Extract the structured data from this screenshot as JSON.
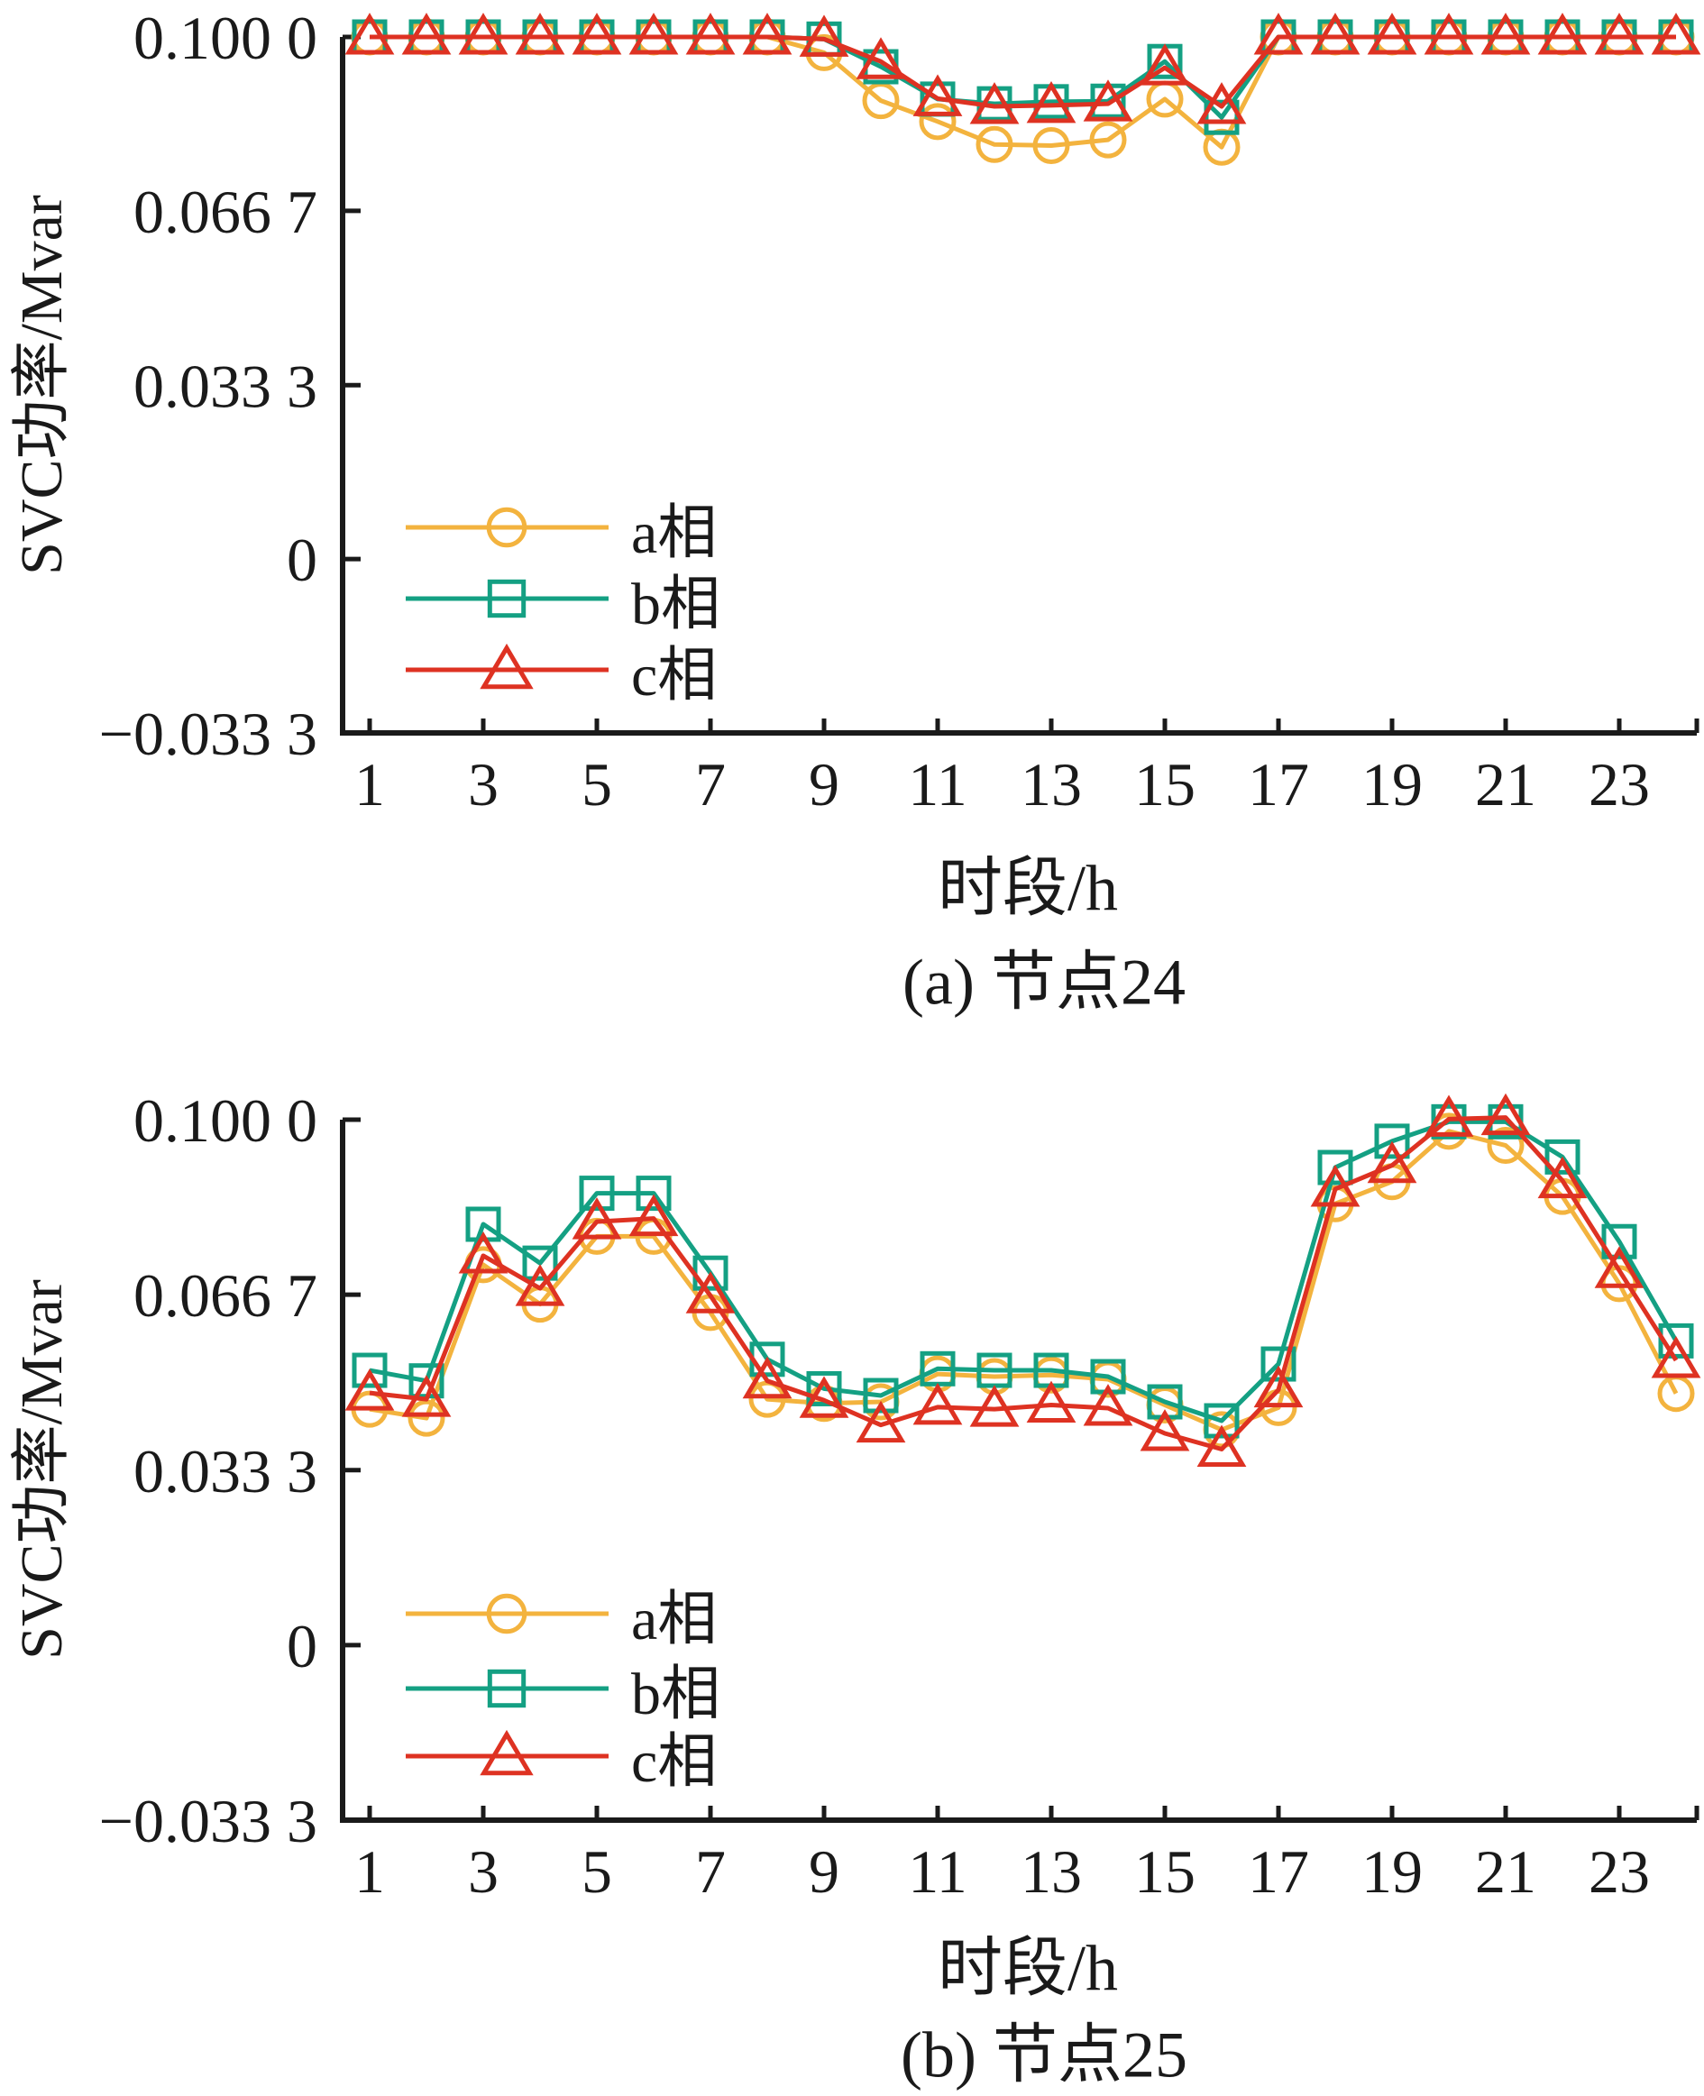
{
  "figure": {
    "background": "#ffffff",
    "axis_color": "#1a1a1a",
    "series_colors": {
      "a_phase": "#F3B33E",
      "b_phase": "#14A083",
      "c_phase": "#DE3222"
    }
  },
  "chart_data": [
    {
      "id": "a",
      "type": "line",
      "title": "(a) 节点24",
      "xlabel": "时段/h",
      "ylabel": "SVC功率/Mvar",
      "grid": false,
      "legend_position": "inside-lower-left",
      "xlim": [
        0.5,
        24.5
      ],
      "ylim": [
        -0.0333,
        0.1
      ],
      "x": [
        1,
        2,
        3,
        4,
        5,
        6,
        7,
        8,
        9,
        10,
        11,
        12,
        13,
        14,
        15,
        16,
        17,
        18,
        19,
        20,
        21,
        22,
        23,
        24
      ],
      "xticks": {
        "values": [
          1,
          3,
          5,
          7,
          9,
          11,
          13,
          15,
          17,
          19,
          21,
          23
        ],
        "labels": [
          "1",
          "3",
          "5",
          "7",
          "9",
          "11",
          "13",
          "15",
          "17",
          "19",
          "21",
          "23"
        ]
      },
      "yticks": {
        "values": [
          0.1,
          0.0667,
          0.0333,
          0,
          -0.0333
        ],
        "labels": [
          "0.100 0",
          "0.066 7",
          "0.033 3",
          "0",
          "−0.033 3"
        ]
      },
      "series": [
        {
          "name": "a相",
          "marker": "circle",
          "color": "#F3B33E",
          "values": [
            0.1,
            0.1,
            0.1,
            0.1,
            0.1,
            0.1,
            0.1,
            0.1,
            0.097,
            0.0878,
            0.0838,
            0.0794,
            0.0792,
            0.0803,
            0.0881,
            0.0789,
            0.1,
            0.1,
            0.1,
            0.1,
            0.1,
            0.1,
            0.1,
            0.1
          ]
        },
        {
          "name": "b相",
          "marker": "square",
          "color": "#14A083",
          "values": [
            0.1,
            0.1,
            0.1,
            0.1,
            0.1,
            0.1,
            0.1,
            0.1,
            0.0996,
            0.0943,
            0.0881,
            0.0872,
            0.0876,
            0.0877,
            0.0953,
            0.0846,
            0.1,
            0.1,
            0.1,
            0.1,
            0.1,
            0.1,
            0.1,
            0.1
          ]
        },
        {
          "name": "c相",
          "marker": "triangle",
          "color": "#DE3222",
          "values": [
            0.1,
            0.1,
            0.1,
            0.1,
            0.1,
            0.1,
            0.1,
            0.1,
            0.0996,
            0.0953,
            0.0882,
            0.0867,
            0.0869,
            0.0872,
            0.0941,
            0.0867,
            0.1,
            0.1,
            0.1,
            0.1,
            0.1,
            0.1,
            0.1,
            0.1
          ]
        }
      ]
    },
    {
      "id": "b",
      "type": "line",
      "title": "(b) 节点25",
      "xlabel": "时段/h",
      "ylabel": "SVC功率/Mvar",
      "grid": false,
      "legend_position": "inside-lower-left",
      "xlim": [
        0.5,
        24.5
      ],
      "ylim": [
        -0.0333,
        0.1
      ],
      "x": [
        1,
        2,
        3,
        4,
        5,
        6,
        7,
        8,
        9,
        10,
        11,
        12,
        13,
        14,
        15,
        16,
        17,
        18,
        19,
        20,
        21,
        22,
        23,
        24
      ],
      "xticks": {
        "values": [
          1,
          3,
          5,
          7,
          9,
          11,
          13,
          15,
          17,
          19,
          21,
          23
        ],
        "labels": [
          "1",
          "3",
          "5",
          "7",
          "9",
          "11",
          "13",
          "15",
          "17",
          "19",
          "21",
          "23"
        ]
      },
      "yticks": {
        "values": [
          0.1,
          0.0667,
          0.0333,
          0,
          -0.0333
        ],
        "labels": [
          "0.100 0",
          "0.066 7",
          "0.033 3",
          "0",
          "−0.033 3"
        ]
      },
      "series": [
        {
          "name": "a相",
          "marker": "circle",
          "color": "#F3B33E",
          "values": [
            0.0449,
            0.0432,
            0.0724,
            0.0649,
            0.0778,
            0.0778,
            0.0633,
            0.0468,
            0.046,
            0.0463,
            0.0516,
            0.0511,
            0.0514,
            0.0506,
            0.0457,
            0.041,
            0.0452,
            0.084,
            0.0882,
            0.0978,
            0.0951,
            0.0854,
            0.0688,
            0.0479
          ]
        },
        {
          "name": "b相",
          "marker": "square",
          "color": "#14A083",
          "values": [
            0.0523,
            0.0503,
            0.0801,
            0.0727,
            0.086,
            0.086,
            0.0708,
            0.0544,
            0.0488,
            0.0475,
            0.0526,
            0.0523,
            0.0523,
            0.0511,
            0.0463,
            0.0427,
            0.0535,
            0.0909,
            0.0959,
            0.0996,
            0.0996,
            0.0929,
            0.0768,
            0.0579
          ]
        },
        {
          "name": "c相",
          "marker": "triangle",
          "color": "#DE3222",
          "values": [
            0.048,
            0.0468,
            0.0741,
            0.0679,
            0.0806,
            0.0812,
            0.0665,
            0.0503,
            0.0466,
            0.0419,
            0.0453,
            0.0449,
            0.0457,
            0.0451,
            0.0403,
            0.0373,
            0.0486,
            0.0868,
            0.0913,
            0.1001,
            0.1004,
            0.0884,
            0.0713,
            0.0542
          ]
        }
      ]
    }
  ]
}
